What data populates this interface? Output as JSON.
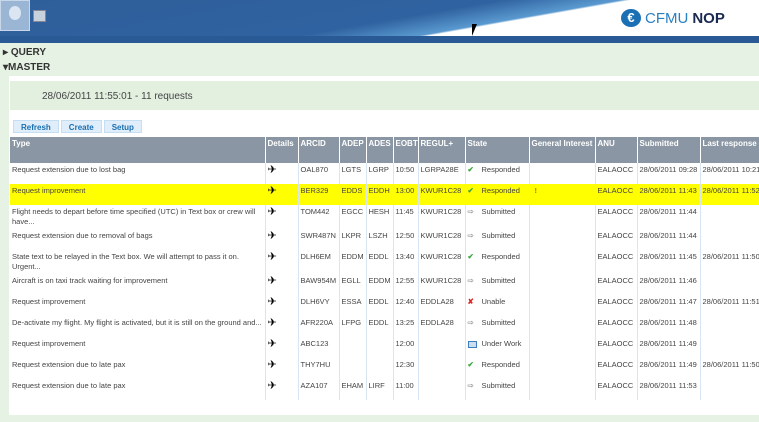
{
  "header": {
    "logo_prefix": "CFMU",
    "logo_suffix": "NOP"
  },
  "sections": {
    "query": "QUERY",
    "master": "MASTER"
  },
  "info": "28/06/2011 11:55:01 - 11 requests",
  "toolbar": {
    "refresh": "Refresh",
    "create": "Create",
    "setup": "Setup"
  },
  "columns": [
    "Type",
    "Details",
    "ARCID",
    "ADEP",
    "ADES",
    "EOBT",
    "REGUL+",
    "State",
    "General Interest",
    "ANU",
    "Submitted",
    "Last response"
  ],
  "rows": [
    {
      "type": "Request extension due to lost bag",
      "arcid": "OAL870",
      "adep": "LGTS",
      "ades": "LGRP",
      "eobt": "10:50",
      "regul": "LGRPA28E",
      "state": "Responded",
      "state_icon": "check-icon",
      "gi": "",
      "anu": "EALAOCC",
      "submitted": "28/06/2011 09:28",
      "last": "28/06/2011 10:21",
      "highlight": false
    },
    {
      "type": "Request improvement",
      "arcid": "BER329",
      "adep": "EDDS",
      "ades": "EDDH",
      "eobt": "13:00",
      "regul": "KWUR1C28",
      "state": "Responded",
      "state_icon": "check-icon",
      "gi": "!",
      "anu": "EALAOCC",
      "submitted": "28/06/2011 11:43",
      "last": "28/06/2011 11:52",
      "highlight": true
    },
    {
      "type": "Flight needs to depart before time specified (UTC) in Text box or crew will have...",
      "arcid": "TOM442",
      "adep": "EGCC",
      "ades": "HESH",
      "eobt": "11:45",
      "regul": "KWUR1C28",
      "state": "Submitted",
      "state_icon": "arrow-icon",
      "gi": "",
      "anu": "EALAOCC",
      "submitted": "28/06/2011 11:44",
      "last": "",
      "highlight": false
    },
    {
      "type": "Request extension due to removal of bags",
      "arcid": "SWR487N",
      "adep": "LKPR",
      "ades": "LSZH",
      "eobt": "12:50",
      "regul": "KWUR1C28",
      "state": "Submitted",
      "state_icon": "arrow-icon",
      "gi": "",
      "anu": "EALAOCC",
      "submitted": "28/06/2011 11:44",
      "last": "",
      "highlight": false
    },
    {
      "type": "State text to be relayed in the Text box. We will attempt to pass it on. Urgent...",
      "arcid": "DLH6EM",
      "adep": "EDDM",
      "ades": "EDDL",
      "eobt": "13:40",
      "regul": "KWUR1C28",
      "state": "Responded",
      "state_icon": "check-icon",
      "gi": "",
      "anu": "EALAOCC",
      "submitted": "28/06/2011 11:45",
      "last": "28/06/2011 11:50",
      "highlight": false
    },
    {
      "type": "Aircraft is on taxi track waiting for improvement",
      "arcid": "BAW954M",
      "adep": "EGLL",
      "ades": "EDDM",
      "eobt": "12:55",
      "regul": "KWUR1C28",
      "state": "Submitted",
      "state_icon": "arrow-icon",
      "gi": "",
      "anu": "EALAOCC",
      "submitted": "28/06/2011 11:46",
      "last": "",
      "highlight": false
    },
    {
      "type": "Request improvement",
      "arcid": "DLH6VY",
      "adep": "ESSA",
      "ades": "EDDL",
      "eobt": "12:40",
      "regul": "EDDLA28",
      "state": "Unable",
      "state_icon": "x-icon",
      "gi": "",
      "anu": "EALAOCC",
      "submitted": "28/06/2011 11:47",
      "last": "28/06/2011 11:51",
      "highlight": false
    },
    {
      "type": "De-activate my flight. My flight is activated, but it is still on the ground and...",
      "arcid": "AFR220A",
      "adep": "LFPG",
      "ades": "EDDL",
      "eobt": "13:25",
      "regul": "EDDLA28",
      "state": "Submitted",
      "state_icon": "arrow-icon",
      "gi": "",
      "anu": "EALAOCC",
      "submitted": "28/06/2011 11:48",
      "last": "",
      "highlight": false
    },
    {
      "type": "Request improvement",
      "arcid": "ABC123",
      "adep": "",
      "ades": "",
      "eobt": "12:00",
      "regul": "",
      "state": "Under Work",
      "state_icon": "under-work-icon",
      "gi": "",
      "anu": "EALAOCC",
      "submitted": "28/06/2011 11:49",
      "last": "",
      "highlight": false
    },
    {
      "type": "Request extension due to late pax",
      "arcid": "THY7HU",
      "adep": "",
      "ades": "",
      "eobt": "12:30",
      "regul": "",
      "state": "Responded",
      "state_icon": "check-icon",
      "gi": "",
      "anu": "EALAOCC",
      "submitted": "28/06/2011 11:49",
      "last": "28/06/2011 11:50",
      "highlight": false
    },
    {
      "type": "Request extension due to late pax",
      "arcid": "AZA107",
      "adep": "EHAM",
      "ades": "LIRF",
      "eobt": "11:00",
      "regul": "",
      "state": "Submitted",
      "state_icon": "arrow-icon",
      "gi": "",
      "anu": "EALAOCC",
      "submitted": "28/06/2011 11:53",
      "last": "",
      "highlight": false
    }
  ]
}
